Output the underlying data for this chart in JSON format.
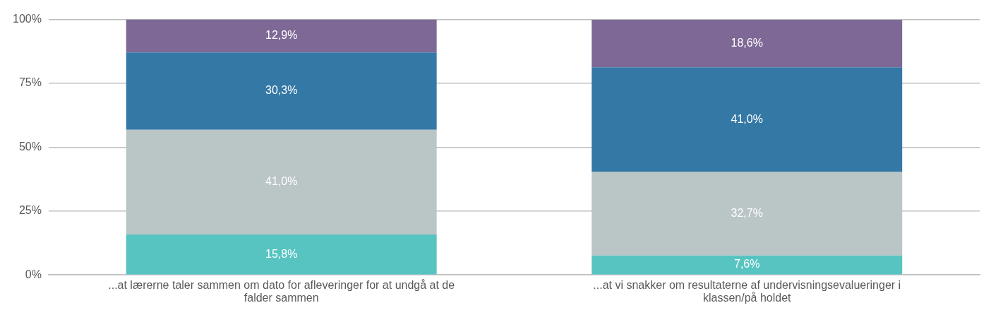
{
  "chart_data": {
    "type": "bar",
    "stacked": true,
    "categories": [
      "...at lærerne taler sammen om dato for afleveringer for at undgå at de falder sammen",
      "...at vi snakker om resultaterne af undervisningsevalueringer i klassen/på holdet"
    ],
    "series": [
      {
        "color": "#57c4c1",
        "values": [
          15.8,
          7.6
        ],
        "value_labels": [
          "15,8%",
          "7,6%"
        ]
      },
      {
        "color": "#bac5c6",
        "values": [
          41.0,
          32.7
        ],
        "value_labels": [
          "41,0%",
          "32,7%"
        ]
      },
      {
        "color": "#3478a5",
        "values": [
          30.3,
          41.0
        ],
        "value_labels": [
          "30,3%",
          "41,0%"
        ]
      },
      {
        "color": "#7e6896",
        "values": [
          12.9,
          18.6
        ],
        "value_labels": [
          "12,9%",
          "18,6%"
        ]
      }
    ],
    "ylim": [
      0,
      100
    ],
    "yticks": [
      {
        "value": 0,
        "label": "0%"
      },
      {
        "value": 25,
        "label": "25%"
      },
      {
        "value": 50,
        "label": "50%"
      },
      {
        "value": 75,
        "label": "75%"
      },
      {
        "value": 100,
        "label": "100%"
      }
    ],
    "grid": "y",
    "legend": false
  }
}
